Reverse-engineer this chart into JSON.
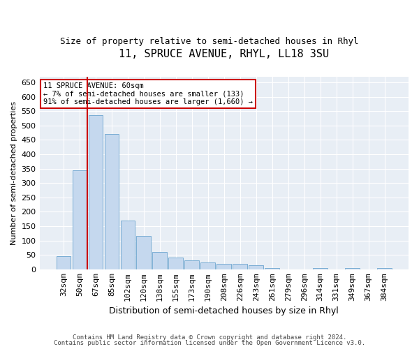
{
  "title": "11, SPRUCE AVENUE, RHYL, LL18 3SU",
  "subtitle": "Size of property relative to semi-detached houses in Rhyl",
  "xlabel": "Distribution of semi-detached houses by size in Rhyl",
  "ylabel": "Number of semi-detached properties",
  "categories": [
    "32sqm",
    "50sqm",
    "67sqm",
    "85sqm",
    "102sqm",
    "120sqm",
    "138sqm",
    "155sqm",
    "173sqm",
    "190sqm",
    "208sqm",
    "226sqm",
    "243sqm",
    "261sqm",
    "279sqm",
    "296sqm",
    "314sqm",
    "331sqm",
    "349sqm",
    "367sqm",
    "384sqm"
  ],
  "values": [
    45,
    345,
    535,
    470,
    170,
    115,
    60,
    40,
    30,
    25,
    20,
    20,
    15,
    5,
    0,
    0,
    5,
    0,
    5,
    0,
    5
  ],
  "bar_color": "#c5d8ee",
  "bar_edge_color": "#7aadd4",
  "annotation_text": "11 SPRUCE AVENUE: 60sqm\n← 7% of semi-detached houses are smaller (133)\n91% of semi-detached houses are larger (1,660) →",
  "annotation_box_color": "#ffffff",
  "annotation_box_edge": "#cc0000",
  "vline_color": "#cc0000",
  "vline_x": 1.5,
  "ylim": [
    0,
    670
  ],
  "yticks": [
    0,
    50,
    100,
    150,
    200,
    250,
    300,
    350,
    400,
    450,
    500,
    550,
    600,
    650
  ],
  "background_color": "#e8eef5",
  "title_fontsize": 11,
  "subtitle_fontsize": 9,
  "xlabel_fontsize": 9,
  "ylabel_fontsize": 8,
  "tick_fontsize": 8,
  "footer_line1": "Contains HM Land Registry data © Crown copyright and database right 2024.",
  "footer_line2": "Contains public sector information licensed under the Open Government Licence v3.0."
}
